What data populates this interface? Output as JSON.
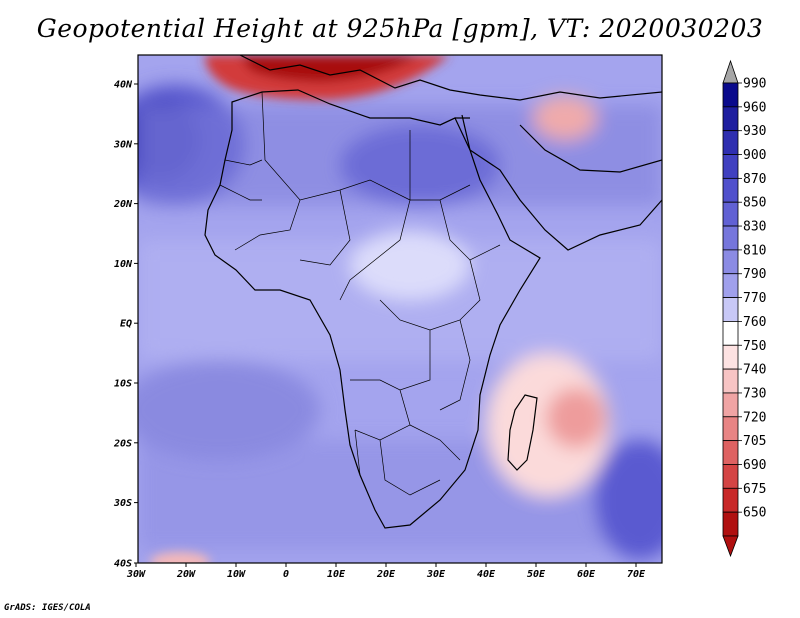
{
  "title": "Geopotential Height at 925hPa [gpm], VT: 2020030203",
  "credit": "GrADS: IGES/COLA",
  "map": {
    "variable": "Geopotential Height",
    "level": "925hPa",
    "units": "gpm",
    "valid_time": "2020030203",
    "lon_range": [
      -30,
      75
    ],
    "lat_range": [
      -40,
      45
    ],
    "x_tick_labels": [
      "30W",
      "20W",
      "10W",
      "0",
      "10E",
      "20E",
      "30E",
      "40E",
      "50E",
      "60E",
      "70E"
    ],
    "y_tick_labels": [
      "40N",
      "30N",
      "20N",
      "10N",
      "EQ",
      "10S",
      "20S",
      "30S",
      "40S"
    ]
  },
  "colorbar": {
    "labels": [
      "990",
      "960",
      "930",
      "900",
      "870",
      "850",
      "830",
      "810",
      "790",
      "770",
      "760",
      "750",
      "740",
      "730",
      "720",
      "705",
      "690",
      "675",
      "650"
    ],
    "colors": [
      "#0a0a8c",
      "#1e1e9f",
      "#2e2eb0",
      "#4040c0",
      "#5050cc",
      "#6161d4",
      "#7676dc",
      "#8b8be4",
      "#a0a0ec",
      "#c8c8f6",
      "#ffffff",
      "#fde2e2",
      "#f7c4c4",
      "#f0a4a4",
      "#e88484",
      "#de6262",
      "#d44444",
      "#c82828",
      "#b01010"
    ],
    "top_arrow_color": "#a6a6a6",
    "bottom_arrow_color": "#b01010"
  }
}
